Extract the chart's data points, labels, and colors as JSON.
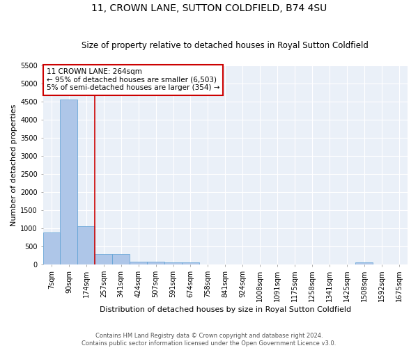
{
  "title_line1": "11, CROWN LANE, SUTTON COLDFIELD, B74 4SU",
  "title_line2": "Size of property relative to detached houses in Royal Sutton Coldfield",
  "xlabel": "Distribution of detached houses by size in Royal Sutton Coldfield",
  "ylabel": "Number of detached properties",
  "footer_line1": "Contains HM Land Registry data © Crown copyright and database right 2024.",
  "footer_line2": "Contains public sector information licensed under the Open Government Licence v3.0.",
  "categories": [
    "7sqm",
    "90sqm",
    "174sqm",
    "257sqm",
    "341sqm",
    "424sqm",
    "507sqm",
    "591sqm",
    "674sqm",
    "758sqm",
    "841sqm",
    "924sqm",
    "1008sqm",
    "1091sqm",
    "1175sqm",
    "1258sqm",
    "1341sqm",
    "1425sqm",
    "1508sqm",
    "1592sqm",
    "1675sqm"
  ],
  "values": [
    880,
    4560,
    1060,
    290,
    280,
    80,
    70,
    50,
    55,
    0,
    0,
    0,
    0,
    0,
    0,
    0,
    0,
    0,
    55,
    0,
    0
  ],
  "bar_color": "#aec6e8",
  "bar_edge_color": "#5a9fd4",
  "vline_x_index": 3,
  "vline_color": "#cc0000",
  "annotation_text": "11 CROWN LANE: 264sqm\n← 95% of detached houses are smaller (6,503)\n5% of semi-detached houses are larger (354) →",
  "annotation_box_color": "#cc0000",
  "ylim": [
    0,
    5500
  ],
  "yticks": [
    0,
    500,
    1000,
    1500,
    2000,
    2500,
    3000,
    3500,
    4000,
    4500,
    5000,
    5500
  ],
  "background_color": "#eaf0f8",
  "grid_color": "#ffffff",
  "title_fontsize": 10,
  "subtitle_fontsize": 8.5,
  "axis_label_fontsize": 8,
  "tick_fontsize": 7,
  "annot_fontsize": 7.5
}
